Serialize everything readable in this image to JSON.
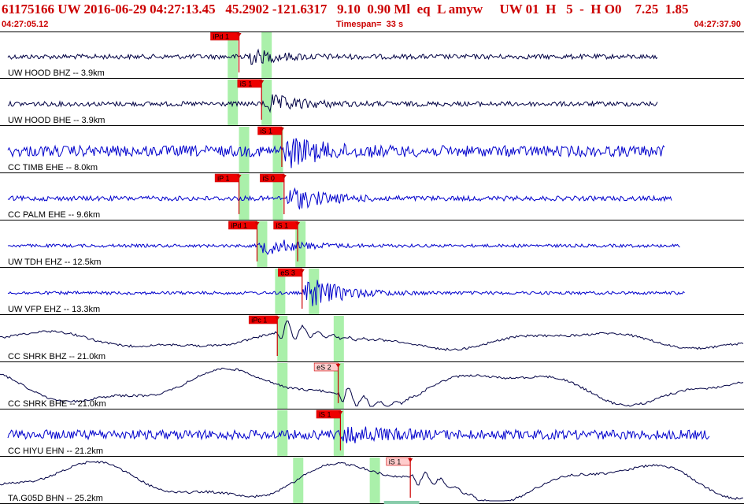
{
  "header": {
    "title": "61175166 UW 2016-06-29 04:27:13.45   45.2902 -121.6317   9.10  0.90 Ml  eq  L amyw     UW 01  H   5  -  H O0    7.25  1.85",
    "start_time": "04:27:05.12",
    "timespan": "Timespan=  33 s",
    "end_time": "04:27:37.90"
  },
  "colors": {
    "header_text": "#cc0000",
    "trace_blue": "#0000cc",
    "trace_black": "#000044",
    "pick_box": "#ee0000",
    "pick_box_light": "#ffcccc",
    "window_green": "#aaf0aa",
    "pick_line": "#cc0000",
    "label_text": "#000000"
  },
  "traces": [
    {
      "label": "UW HOOD BHZ -- 3.9km",
      "color": "black",
      "style": "hf",
      "arrival_s": 10.6,
      "end_s": 29.2,
      "amp": 3,
      "burst": 12,
      "greens": [
        10.1,
        11.6
      ],
      "picks": [
        {
          "label": "iPd 1",
          "t_s": 10.6,
          "style": "solid"
        }
      ]
    },
    {
      "label": "UW HOOD BHE -- 3.9km",
      "color": "black",
      "style": "hf",
      "arrival_s": 11.6,
      "end_s": 29.2,
      "amp": 3,
      "burst": 14,
      "greens": [
        10.1,
        11.6
      ],
      "picks": [
        {
          "label": "iS 1",
          "t_s": 11.6,
          "style": "solid"
        }
      ]
    },
    {
      "label": "CC TIMB EHE -- 8.0km",
      "color": "blue",
      "style": "hf",
      "arrival_s": 12.5,
      "end_s": 29.5,
      "amp": 7,
      "burst": 20,
      "greens": [
        10.6,
        12.1
      ],
      "picks": [
        {
          "label": "iS 1",
          "t_s": 12.5,
          "style": "solid"
        }
      ]
    },
    {
      "label": "CC PALM EHE -- 9.6km",
      "color": "blue",
      "style": "hf",
      "arrival_s": 12.6,
      "end_s": 29.8,
      "amp": 3,
      "burst": 18,
      "greens": [
        10.6,
        12.1
      ],
      "picks": [
        {
          "label": "iP 1",
          "t_s": 10.6,
          "style": "solid"
        },
        {
          "label": "iS 0",
          "t_s": 12.6,
          "style": "solid"
        }
      ]
    },
    {
      "label": "UW TDH EHZ -- 12.5km",
      "color": "blue",
      "style": "hf",
      "arrival_s": 11.4,
      "end_s": 30.2,
      "amp": 2,
      "burst": 14,
      "greens": [
        11.4,
        13.1
      ],
      "picks": [
        {
          "label": "iPd 1",
          "t_s": 11.4,
          "style": "solid"
        },
        {
          "label": "iS 1",
          "t_s": 13.2,
          "style": "solid"
        }
      ]
    },
    {
      "label": "UW VFP EHZ -- 13.3km",
      "color": "blue",
      "style": "hf",
      "arrival_s": 13.4,
      "end_s": 30.4,
      "amp": 2,
      "burst": 26,
      "greens": [
        12.2,
        13.7
      ],
      "picks": [
        {
          "label": "eS 3",
          "t_s": 13.4,
          "style": "solid"
        }
      ]
    },
    {
      "label": "CC SHRK BHZ -- 21.0km",
      "color": "black",
      "style": "lf",
      "arrival_s": 12.3,
      "end_s": 33,
      "amp": 10,
      "burst": 18,
      "greens": [
        12.3,
        14.8
      ],
      "picks": [
        {
          "label": "iPc 1",
          "t_s": 12.3,
          "style": "solid"
        }
      ]
    },
    {
      "label": "CC SHRK BHE -- 21.0km",
      "color": "black",
      "style": "lf",
      "arrival_s": 15.0,
      "end_s": 33,
      "amp": 20,
      "burst": 16,
      "greens": [
        12.3,
        14.8
      ],
      "picks": [
        {
          "label": "eS 2",
          "t_s": 15.0,
          "style": "light"
        }
      ]
    },
    {
      "label": "CC HIYU EHN -- 21.2km",
      "color": "blue",
      "style": "hf",
      "arrival_s": 15.1,
      "end_s": 31.5,
      "amp": 6,
      "burst": 12,
      "greens": [
        12.3,
        14.8
      ],
      "picks": [
        {
          "label": "iS 1",
          "t_s": 15.1,
          "style": "solid"
        }
      ]
    },
    {
      "label": "TA.G05D BHN -- 25.2km",
      "color": "black",
      "style": "lf",
      "arrival_s": 18.2,
      "end_s": 33,
      "amp": 22,
      "burst": 12,
      "greens": [
        13.0,
        16.4
      ],
      "picks": [
        {
          "label": "iS 1",
          "t_s": 18.2,
          "style": "light"
        }
      ]
    }
  ]
}
